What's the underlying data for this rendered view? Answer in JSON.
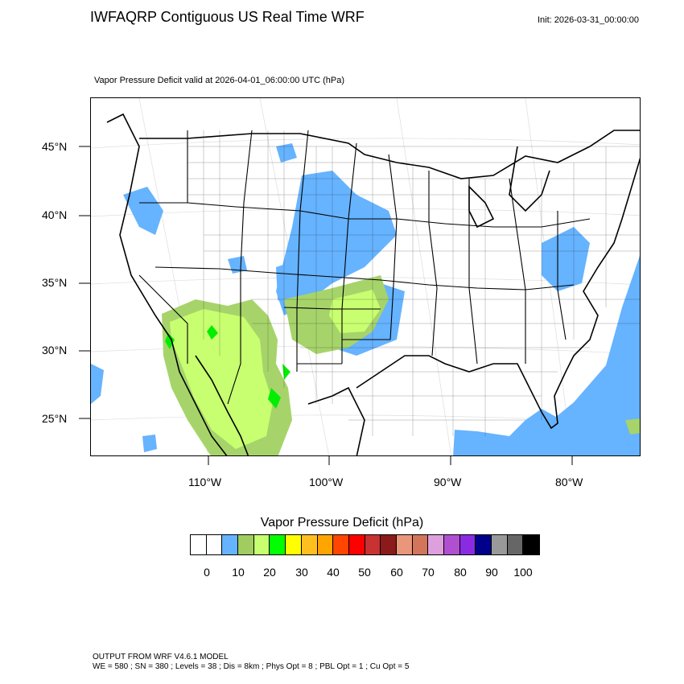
{
  "header": {
    "title": "IWFAQRP Contiguous US Real Time WRF",
    "init": "Init: 2026-03-31_00:00:00",
    "subtitle": "Vapor Pressure Deficit valid at 2026-04-01_06:00:00 UTC   (hPa)"
  },
  "map": {
    "lat_labels": [
      "45°N",
      "40°N",
      "35°N",
      "30°N",
      "25°N"
    ],
    "lon_labels": [
      "110°W",
      "100°W",
      "90°W",
      "80°W"
    ],
    "colors": {
      "vpd_0_10": "#ffffff",
      "vpd_10_15": "#66b3ff",
      "vpd_15_20": "#a6d46a",
      "vpd_20_25": "#c8ff70",
      "vpd_25_30": "#00ee00",
      "outline": "#000000",
      "county": "#222222"
    }
  },
  "colorbar": {
    "title": "Vapor Pressure Deficit  (hPa)",
    "colors": [
      "#ffffff",
      "#ffffff",
      "#66b3ff",
      "#a0cc60",
      "#c8ff70",
      "#00ff00",
      "#ffff00",
      "#ffbf1f",
      "#ffa500",
      "#ff4500",
      "#ff0000",
      "#c83232",
      "#8b1a1a",
      "#e9967a",
      "#d2755a",
      "#dda0dd",
      "#b04fd0",
      "#8a2be2",
      "#00008b",
      "#999999",
      "#666666",
      "#000000"
    ],
    "ticks": [
      "0",
      "10",
      "20",
      "30",
      "40",
      "50",
      "60",
      "70",
      "80",
      "90",
      "100"
    ]
  },
  "footer": {
    "line1": "OUTPUT FROM WRF V4.6.1 MODEL",
    "line2": "WE = 580 ; SN = 380 ; Levels = 38 ; Dis = 8km ; Phys Opt = 8 ; PBL Opt = 1 ; Cu Opt = 5"
  }
}
